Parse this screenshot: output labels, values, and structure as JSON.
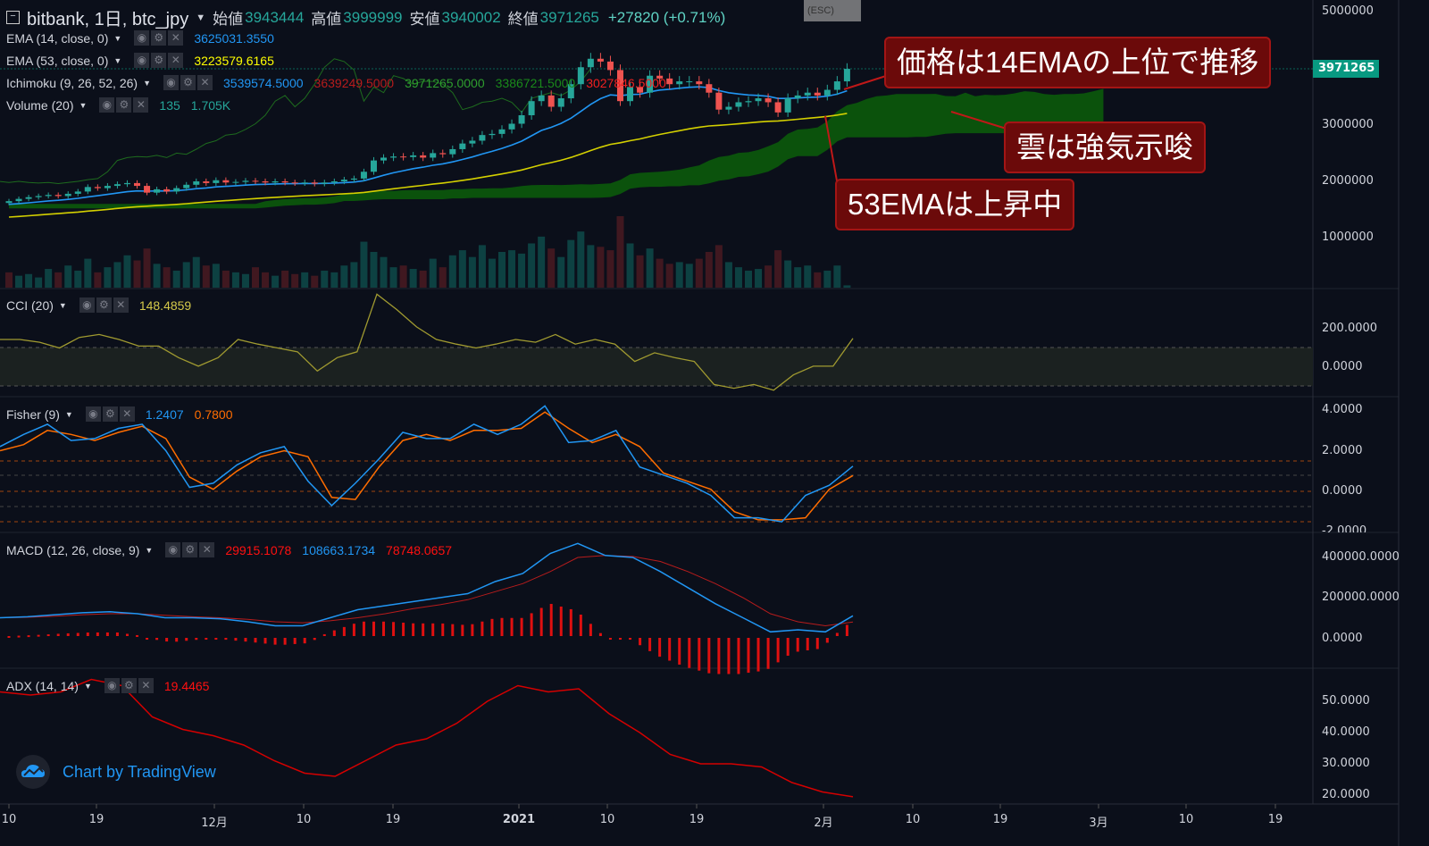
{
  "header": {
    "symbol": "bitbank, 1日, btc_jpy",
    "open_label": "始値",
    "open": "3943444",
    "high_label": "高値",
    "high": "3999999",
    "low_label": "安値",
    "low": "3940002",
    "close_label": "終値",
    "close": "3971265",
    "change": "+27820 (+0.71%)",
    "esc_hint": "(ESC)"
  },
  "legends": {
    "ema14": {
      "name": "EMA (14, close, 0)",
      "value": "3625031.3550"
    },
    "ema53": {
      "name": "EMA (53, close, 0)",
      "value": "3223579.6165"
    },
    "ichimoku": {
      "name": "Ichimoku (9, 26, 52, 26)",
      "values": [
        "3539574.5000",
        "3639249.5000",
        "3971265.0000",
        "3386721.5000",
        "3027846.5000"
      ]
    },
    "volume": {
      "name": "Volume (20)",
      "values": [
        "135",
        "1.705K"
      ]
    },
    "cci": {
      "name": "CCI (20)",
      "value": "148.4859"
    },
    "fisher": {
      "name": "Fisher (9)",
      "values": [
        "1.2407",
        "0.7800"
      ]
    },
    "macd": {
      "name": "MACD (12, 26, close, 9)",
      "values": [
        "29915.1078",
        "108663.1734",
        "78748.0657"
      ]
    },
    "adx": {
      "name": "ADX (14, 14)",
      "value": "19.4465"
    }
  },
  "price_axis": {
    "ticks": [
      "5000000",
      "3000000",
      "2000000",
      "1000000"
    ],
    "last_price": "3971265"
  },
  "cci_axis": [
    "200.0000",
    "0.0000"
  ],
  "fisher_axis": [
    "4.0000",
    "2.0000",
    "0.0000",
    "-2.0000"
  ],
  "macd_axis": [
    "400000.0000",
    "200000.0000",
    "0.0000"
  ],
  "adx_axis": [
    "50.0000",
    "40.0000",
    "30.0000",
    "20.0000"
  ],
  "time_axis": [
    "10",
    "19",
    "12月",
    "10",
    "19",
    "2021",
    "10",
    "19",
    "2月",
    "10",
    "19",
    "3月",
    "10",
    "19"
  ],
  "annotations": [
    "価格は14EMAの上位で推移",
    "雲は強気示唆",
    "53EMAは上昇中"
  ],
  "branding": "Chart by TradingView",
  "colors": {
    "up": "#26a69a",
    "down": "#ef5350",
    "ema14": "#2196f3",
    "ema53": "#d4d000",
    "cloud": "#0b5a0b",
    "annotation_bg": "#6b0a0a",
    "cci": "#a09a30",
    "fisher": "#2196f3",
    "fisher_trigger": "#ff6d00",
    "macd": "#2196f3",
    "signal": "#b71c1c",
    "adx": "#d50000"
  },
  "chart_data": {
    "type": "candlestick",
    "first_date": "Nov 10",
    "closes": [
      1630000,
      1670000,
      1700000,
      1720000,
      1740000,
      1720000,
      1760000,
      1800000,
      1880000,
      1860000,
      1900000,
      1930000,
      1950000,
      1900000,
      1780000,
      1840000,
      1800000,
      1860000,
      1920000,
      1980000,
      1950000,
      2000000,
      1960000,
      1970000,
      1990000,
      1980000,
      1960000,
      1980000,
      1960000,
      1950000,
      1960000,
      1940000,
      1960000,
      1980000,
      2010000,
      2030000,
      2150000,
      2350000,
      2400000,
      2420000,
      2410000,
      2440000,
      2400000,
      2480000,
      2460000,
      2550000,
      2650000,
      2700000,
      2800000,
      2820000,
      2900000,
      3000000,
      3150000,
      3400000,
      3500000,
      3300000,
      3450000,
      3700000,
      4000000,
      4150000,
      4100000,
      3950000,
      3400000,
      3650000,
      3550000,
      3850000,
      3800000,
      3700000,
      3750000,
      3750000,
      3700000,
      3550000,
      3250000,
      3300000,
      3380000,
      3400000,
      3450000,
      3380000,
      3200000,
      3450000,
      3500000,
      3550000,
      3500000,
      3600000,
      3750000,
      3971265
    ],
    "volumes": [
      900,
      700,
      800,
      600,
      1100,
      900,
      1300,
      1000,
      1700,
      900,
      1200,
      1500,
      1900,
      1600,
      2300,
      1400,
      1200,
      1000,
      1500,
      1800,
      1300,
      1400,
      1000,
      900,
      800,
      1200,
      900,
      700,
      1000,
      800,
      900,
      700,
      1000,
      900,
      1300,
      1500,
      2700,
      2100,
      1800,
      1200,
      1300,
      1100,
      1000,
      1700,
      1200,
      1900,
      2200,
      1800,
      2500,
      1700,
      2100,
      2200,
      2000,
      2600,
      3000,
      2300,
      1800,
      2800,
      3300,
      2500,
      2400,
      2200,
      4200,
      2600,
      1900,
      2300,
      1700,
      1400,
      1500,
      1400,
      1700,
      2100,
      2500,
      1500,
      1200,
      1000,
      1100,
      1300,
      2200,
      1600,
      1200,
      1300,
      900,
      1000,
      1300,
      135
    ],
    "cci": [
      144,
      144,
      130,
      100,
      155,
      170,
      144,
      110,
      110,
      50,
      5,
      50,
      144,
      120,
      100,
      80,
      -20,
      50,
      80,
      380,
      300,
      210,
      144,
      120,
      100,
      120,
      144,
      130,
      170,
      120,
      144,
      120,
      30,
      75,
      50,
      30,
      -90,
      -110,
      -90,
      -120,
      -40,
      5,
      5,
      150
    ],
    "fisher": [
      2.2,
      2.8,
      3.3,
      2.5,
      2.6,
      3.1,
      3.3,
      2.0,
      0.2,
      0.4,
      1.3,
      1.9,
      2.2,
      0.5,
      -0.7,
      0.4,
      1.6,
      2.9,
      2.6,
      2.6,
      3.3,
      2.8,
      3.3,
      4.2,
      2.4,
      2.5,
      3.0,
      1.2,
      0.8,
      0.4,
      -0.2,
      -1.3,
      -1.3,
      -1.5,
      -0.2,
      0.3,
      1.24
    ],
    "fisher_trigger": [
      2.0,
      2.3,
      3.0,
      2.8,
      2.5,
      2.9,
      3.2,
      2.6,
      0.7,
      0.1,
      1.0,
      1.7,
      2.0,
      1.7,
      -0.3,
      -0.4,
      1.2,
      2.5,
      2.8,
      2.5,
      3.0,
      3.0,
      3.1,
      3.9,
      3.1,
      2.4,
      2.8,
      2.2,
      0.9,
      0.5,
      0.1,
      -1.0,
      -1.4,
      -1.4,
      -1.3,
      0.1,
      0.78
    ],
    "macd": [
      100000,
      105000,
      115000,
      125000,
      130000,
      120000,
      100000,
      100000,
      95000,
      80000,
      60000,
      60000,
      100000,
      140000,
      160000,
      180000,
      200000,
      220000,
      280000,
      320000,
      420000,
      470000,
      410000,
      400000,
      330000,
      250000,
      170000,
      100000,
      30000,
      40000,
      30000,
      110000
    ],
    "signal": [
      100000,
      102000,
      108000,
      115000,
      120000,
      120000,
      112000,
      105000,
      100000,
      92000,
      80000,
      75000,
      85000,
      100000,
      120000,
      145000,
      165000,
      190000,
      230000,
      270000,
      330000,
      400000,
      410000,
      405000,
      380000,
      330000,
      270000,
      200000,
      120000,
      80000,
      60000,
      79000
    ],
    "adx": [
      53,
      52,
      53,
      57,
      55,
      45,
      41,
      39,
      36,
      31,
      27,
      26,
      31,
      36,
      38,
      43,
      50,
      55,
      53,
      54,
      46,
      40,
      33,
      30,
      30,
      29,
      24,
      21,
      19.45
    ]
  }
}
